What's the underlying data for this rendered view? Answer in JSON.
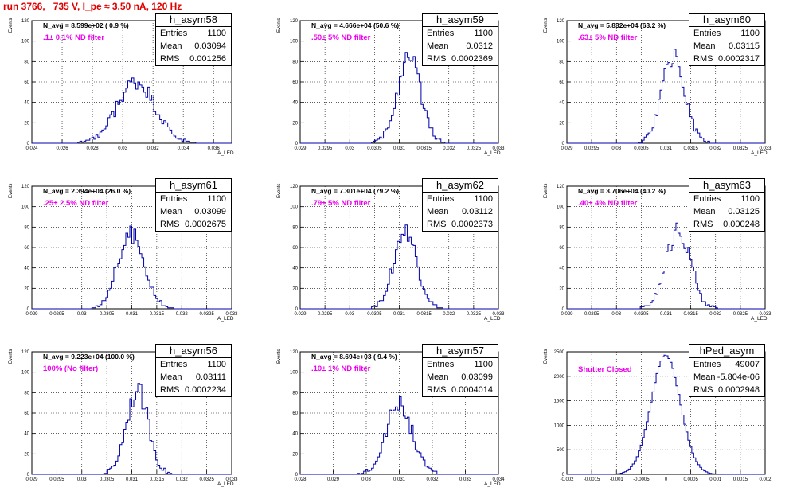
{
  "title": "run 3766,   735 V, I_pe ≈ 3.50 nA, 120 Hz",
  "colors": {
    "title": "#e00000",
    "hist": "#0000aa",
    "filter_label": "#ee00ee"
  },
  "stat_labels": {
    "entries": "Entries",
    "mean": "Mean",
    "rms": "RMS"
  },
  "chart_data": [
    {
      "type": "histogram",
      "name": "h_asym58",
      "navg": "N_avg = 8.599e+02 ( 0.9 %)",
      "filter": ".1± 0.1% ND filter",
      "stats": {
        "entries": "1100",
        "mean": "0.03094",
        "rms": "0.001256"
      },
      "ylabel": "Events",
      "xlabel": "A_LED",
      "xlim": [
        0.024,
        0.0372
      ],
      "ylim": [
        0,
        120
      ],
      "xticks": [
        0.024,
        0.026,
        0.028,
        0.03,
        0.032,
        0.034,
        0.036
      ],
      "xtick_labels": [
        "0.024",
        "0.026",
        "0.028",
        "0.03",
        "0.032",
        "0.034",
        "0.036"
      ],
      "yticks": [
        0,
        20,
        40,
        60,
        80,
        100,
        120
      ],
      "grid": true,
      "legend_position": "top-right",
      "distribution": "gaussian",
      "center": 0.0309,
      "sigma": 0.00125,
      "peak": 60,
      "bins": 100,
      "seed": 58
    },
    {
      "type": "histogram",
      "name": "h_asym59",
      "navg": "N_avg = 4.666e+04 (50.6 %)",
      "filter": ".50± 5% ND filter",
      "stats": {
        "entries": "1100",
        "mean": "0.0312",
        "rms": "0.0002369"
      },
      "ylabel": "Events",
      "xlabel": "A_LED",
      "xlim": [
        0.029,
        0.033
      ],
      "ylim": [
        0,
        120
      ],
      "xticks": [
        0.029,
        0.0295,
        0.03,
        0.0305,
        0.031,
        0.0315,
        0.032,
        0.0325,
        0.033
      ],
      "xtick_labels": [
        "0.029",
        "0.0295",
        "0.03",
        "0.0305",
        "0.031",
        "0.0315",
        "0.032",
        "0.0325",
        "0.033"
      ],
      "yticks": [
        0,
        20,
        40,
        60,
        80,
        100,
        120
      ],
      "grid": true,
      "legend_position": "top-right",
      "distribution": "gaussian",
      "center": 0.0312,
      "sigma": 0.00024,
      "peak": 82,
      "bins": 100,
      "seed": 59
    },
    {
      "type": "histogram",
      "name": "h_asym60",
      "navg": "N_avg = 5.832e+04 (63.2 %)",
      "filter": ".63± 5% ND filter",
      "stats": {
        "entries": "1100",
        "mean": "0.03115",
        "rms": "0.0002317"
      },
      "ylabel": "Events",
      "xlabel": "A_LED",
      "xlim": [
        0.029,
        0.033
      ],
      "ylim": [
        0,
        120
      ],
      "xticks": [
        0.029,
        0.0295,
        0.03,
        0.0305,
        0.031,
        0.0315,
        0.032,
        0.0325,
        0.033
      ],
      "xtick_labels": [
        "0.029",
        "0.0295",
        "0.03",
        "0.0305",
        "0.031",
        "0.0315",
        "0.032",
        "0.0325",
        "0.033"
      ],
      "yticks": [
        0,
        20,
        40,
        60,
        80,
        100,
        120
      ],
      "grid": true,
      "legend_position": "top-right",
      "distribution": "gaussian",
      "center": 0.03115,
      "sigma": 0.000232,
      "peak": 84,
      "bins": 100,
      "seed": 60
    },
    {
      "type": "histogram",
      "name": "h_asym61",
      "navg": "N_avg = 2.394e+04 (26.0 %)",
      "filter": ".25± 2.5% ND filter",
      "stats": {
        "entries": "1100",
        "mean": "0.03099",
        "rms": "0.0002675"
      },
      "ylabel": "Events",
      "xlabel": "A_LED",
      "xlim": [
        0.029,
        0.033
      ],
      "ylim": [
        0,
        120
      ],
      "xticks": [
        0.029,
        0.0295,
        0.03,
        0.0305,
        0.031,
        0.0315,
        0.032,
        0.0325,
        0.033
      ],
      "xtick_labels": [
        "0.029",
        "0.0295",
        "0.03",
        "0.0305",
        "0.031",
        "0.0315",
        "0.032",
        "0.0325",
        "0.033"
      ],
      "yticks": [
        0,
        20,
        40,
        60,
        80,
        100,
        120
      ],
      "grid": true,
      "legend_position": "top-right",
      "distribution": "gaussian",
      "center": 0.03099,
      "sigma": 0.000268,
      "peak": 73,
      "bins": 100,
      "seed": 61
    },
    {
      "type": "histogram",
      "name": "h_asym62",
      "navg": "N_avg = 7.301e+04 (79.2 %)",
      "filter": ".79± 5% ND filter",
      "stats": {
        "entries": "1100",
        "mean": "0.03112",
        "rms": "0.0002373"
      },
      "ylabel": "Events",
      "xlabel": "A_LED",
      "xlim": [
        0.029,
        0.033
      ],
      "ylim": [
        0,
        120
      ],
      "xticks": [
        0.029,
        0.0295,
        0.03,
        0.0305,
        0.031,
        0.0315,
        0.032,
        0.0325,
        0.033
      ],
      "xtick_labels": [
        "0.029",
        "0.0295",
        "0.03",
        "0.0305",
        "0.031",
        "0.0315",
        "0.032",
        "0.0325",
        "0.033"
      ],
      "yticks": [
        0,
        20,
        40,
        60,
        80,
        100,
        120
      ],
      "grid": true,
      "legend_position": "top-right",
      "distribution": "gaussian",
      "center": 0.03112,
      "sigma": 0.000237,
      "peak": 75,
      "bins": 100,
      "seed": 62
    },
    {
      "type": "histogram",
      "name": "h_asym63",
      "navg": "N_avg = 3.706e+04 (40.2 %)",
      "filter": ".40± 4% ND filter",
      "stats": {
        "entries": "1100",
        "mean": "0.03125",
        "rms": "0.000248"
      },
      "ylabel": "Events",
      "xlabel": "A_LED",
      "xlim": [
        0.029,
        0.033
      ],
      "ylim": [
        0,
        120
      ],
      "xticks": [
        0.029,
        0.0295,
        0.03,
        0.0305,
        0.031,
        0.0315,
        0.032,
        0.0325,
        0.033
      ],
      "xtick_labels": [
        "0.029",
        "0.0295",
        "0.03",
        "0.0305",
        "0.031",
        "0.0315",
        "0.032",
        "0.0325",
        "0.033"
      ],
      "yticks": [
        0,
        20,
        40,
        60,
        80,
        100,
        120
      ],
      "grid": true,
      "legend_position": "top-right",
      "distribution": "gaussian",
      "center": 0.03125,
      "sigma": 0.000248,
      "peak": 76,
      "bins": 100,
      "seed": 63
    },
    {
      "type": "histogram",
      "name": "h_asym56",
      "navg": "N_avg = 9.223e+04 (100.0 %)",
      "filter": "100% (No filter)",
      "stats": {
        "entries": "1100",
        "mean": "0.03111",
        "rms": "0.0002234"
      },
      "ylabel": "Events",
      "xlabel": "A_LED",
      "xlim": [
        0.029,
        0.033
      ],
      "ylim": [
        0,
        120
      ],
      "xticks": [
        0.029,
        0.0295,
        0.03,
        0.0305,
        0.031,
        0.0315,
        0.032,
        0.0325,
        0.033
      ],
      "xtick_labels": [
        "0.029",
        "0.0295",
        "0.03",
        "0.0305",
        "0.031",
        "0.0315",
        "0.032",
        "0.0325",
        "0.033"
      ],
      "yticks": [
        0,
        20,
        40,
        60,
        80,
        100,
        120
      ],
      "grid": true,
      "legend_position": "top-right",
      "distribution": "gaussian",
      "center": 0.03111,
      "sigma": 0.000223,
      "peak": 82,
      "bins": 100,
      "seed": 56
    },
    {
      "type": "histogram",
      "name": "h_asym57",
      "navg": "N_avg = 8.694e+03 ( 9.4 %)",
      "filter": ".10± 1% ND filter",
      "stats": {
        "entries": "1100",
        "mean": "0.03099",
        "rms": "0.0004014"
      },
      "ylabel": "Events",
      "xlabel": "A_LED",
      "xlim": [
        0.028,
        0.034
      ],
      "ylim": [
        0,
        120
      ],
      "xticks": [
        0.028,
        0.029,
        0.03,
        0.031,
        0.032,
        0.033,
        0.034
      ],
      "xtick_labels": [
        "0.028",
        "0.029",
        "0.03",
        "0.031",
        "0.032",
        "0.033",
        "0.034"
      ],
      "yticks": [
        0,
        20,
        40,
        60,
        80,
        100,
        120
      ],
      "grid": true,
      "legend_position": "top-right",
      "distribution": "gaussian",
      "center": 0.03099,
      "sigma": 0.0004,
      "peak": 68,
      "bins": 100,
      "seed": 57
    },
    {
      "type": "histogram",
      "name": "hPed_asym",
      "navg": "",
      "filter": "Shutter Closed",
      "stats": {
        "entries": "49007",
        "mean": "-5.804e-06",
        "rms": "0.0002948"
      },
      "ylabel": "Events",
      "xlabel": "",
      "xlim": [
        -0.002,
        0.002
      ],
      "ylim": [
        0,
        2500
      ],
      "xticks": [
        -0.002,
        -0.0015,
        -0.001,
        -0.0005,
        0,
        0.0005,
        0.001,
        0.0015,
        0.002
      ],
      "xtick_labels": [
        "-0.002",
        "-0.0015",
        "-0.001",
        "-0.0005",
        "0",
        "0.0005",
        "0.001",
        "0.0015",
        "0.002"
      ],
      "yticks": [
        0,
        500,
        1000,
        1500,
        2000,
        2500
      ],
      "grid": true,
      "legend_position": "top-right",
      "distribution": "gaussian",
      "center": -5.8e-06,
      "sigma": 0.000295,
      "peak": 2430,
      "bins": 100,
      "seed": 0
    }
  ]
}
